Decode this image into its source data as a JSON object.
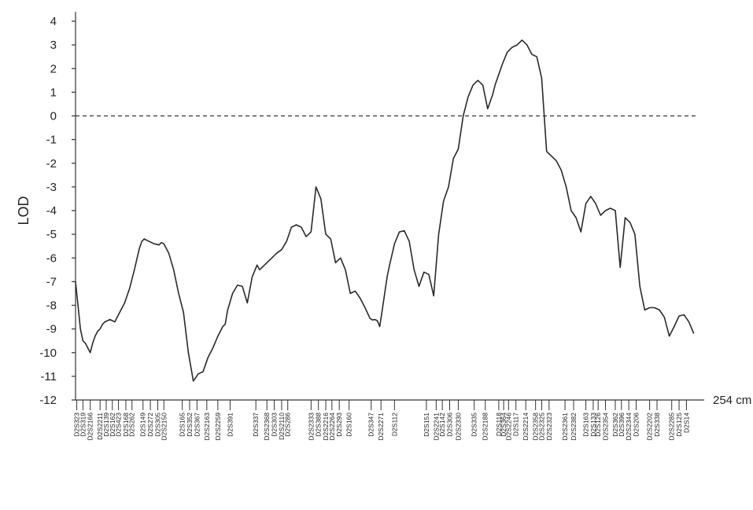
{
  "chart_data": {
    "type": "line",
    "ylabel": "LOD",
    "x_end_label": "254 cm",
    "x_unit": "cM",
    "xlim": [
      0,
      254
    ],
    "ylim": [
      -12,
      4
    ],
    "yticks": [
      "4",
      "3",
      "2",
      "1",
      "0",
      "-1",
      "-2",
      "-3",
      "-4",
      "-5",
      "-6",
      "-7",
      "-8",
      "-9",
      "-10",
      "-11",
      "-12"
    ],
    "threshold": {
      "y": 0,
      "style": "dashed"
    },
    "grid": false,
    "series": [
      {
        "x": [
          0,
          1,
          2,
          3,
          4,
          5,
          6,
          7,
          8,
          9,
          10,
          11,
          12,
          14,
          16,
          18,
          20,
          22,
          24,
          26,
          27,
          28,
          30,
          32,
          34,
          35,
          36,
          38,
          40,
          42,
          44,
          46,
          48,
          50,
          52,
          54,
          56,
          58,
          60,
          61,
          62,
          64,
          66,
          68,
          70,
          72,
          74,
          75,
          76,
          78,
          80,
          82,
          84,
          86,
          88,
          90,
          92,
          94,
          96,
          98,
          100,
          102,
          104,
          106,
          108,
          110,
          112,
          114,
          116,
          118,
          120,
          121,
          122,
          123,
          124,
          125,
          126,
          127,
          128,
          130,
          132,
          134,
          136,
          138,
          140,
          142,
          144,
          146,
          148,
          150,
          152,
          154,
          156,
          158,
          160,
          162,
          164,
          166,
          168,
          170,
          171,
          172,
          174,
          176,
          178,
          180,
          182,
          184,
          186,
          188,
          190,
          192,
          194,
          196,
          198,
          200,
          202,
          204,
          206,
          208,
          210,
          212,
          214,
          216,
          218,
          220,
          222,
          224,
          226,
          228,
          230,
          232,
          234,
          236,
          238,
          240,
          242,
          244,
          246,
          248,
          250,
          252
        ],
        "y": [
          -7.0,
          -8.0,
          -9.0,
          -9.5,
          -9.6,
          -9.8,
          -10.0,
          -9.6,
          -9.3,
          -9.1,
          -9.0,
          -8.8,
          -8.7,
          -8.6,
          -8.7,
          -8.3,
          -7.9,
          -7.3,
          -6.5,
          -5.6,
          -5.3,
          -5.2,
          -5.3,
          -5.4,
          -5.45,
          -5.35,
          -5.4,
          -5.8,
          -6.5,
          -7.5,
          -8.3,
          -10.0,
          -11.2,
          -10.9,
          -10.8,
          -10.2,
          -9.8,
          -9.3,
          -8.9,
          -8.8,
          -8.2,
          -7.5,
          -7.15,
          -7.2,
          -7.9,
          -6.8,
          -6.3,
          -6.5,
          -6.4,
          -6.2,
          -6.0,
          -5.8,
          -5.65,
          -5.3,
          -4.7,
          -4.6,
          -4.7,
          -5.1,
          -4.9,
          -3.0,
          -3.5,
          -5.0,
          -5.2,
          -6.2,
          -6.0,
          -6.5,
          -7.5,
          -7.4,
          -7.7,
          -8.1,
          -8.55,
          -8.62,
          -8.6,
          -8.65,
          -8.9,
          -8.2,
          -7.5,
          -6.8,
          -6.3,
          -5.4,
          -4.9,
          -4.85,
          -5.3,
          -6.5,
          -7.2,
          -6.6,
          -6.7,
          -7.6,
          -5.0,
          -3.6,
          -3.0,
          -1.8,
          -1.4,
          0.0,
          0.8,
          1.3,
          1.5,
          1.3,
          0.3,
          0.9,
          1.3,
          1.6,
          2.2,
          2.7,
          2.9,
          3.0,
          3.2,
          3.0,
          2.6,
          2.5,
          1.6,
          -1.5,
          -1.7,
          -1.9,
          -2.3,
          -3.0,
          -4.0,
          -4.3,
          -4.9,
          -3.7,
          -3.4,
          -3.7,
          -4.2,
          -4.0,
          -3.9,
          -4.0,
          -6.4,
          -4.3,
          -4.5,
          -5.0,
          -7.2,
          -8.2,
          -8.1,
          -8.1,
          -8.2,
          -8.5,
          -9.3,
          -8.9,
          -8.45,
          -8.4,
          -8.7,
          -9.2
        ]
      }
    ],
    "markers": [
      {
        "name": "D2S323",
        "pos": 0.5
      },
      {
        "name": "D2S319",
        "pos": 3
      },
      {
        "name": "D2S2166",
        "pos": 6
      },
      {
        "name": "D2S2211",
        "pos": 10
      },
      {
        "name": "D2S139",
        "pos": 12.5
      },
      {
        "name": "D2S162",
        "pos": 15
      },
      {
        "name": "D2S423",
        "pos": 17.5
      },
      {
        "name": "D2S168",
        "pos": 20.5
      },
      {
        "name": "D2S262",
        "pos": 23
      },
      {
        "name": "D2S149",
        "pos": 27.5
      },
      {
        "name": "D2S272",
        "pos": 30.5
      },
      {
        "name": "D2S305",
        "pos": 33.5
      },
      {
        "name": "D2S2150",
        "pos": 36
      },
      {
        "name": "D2S165",
        "pos": 43.5
      },
      {
        "name": "D2S352",
        "pos": 46.5
      },
      {
        "name": "D2S367",
        "pos": 49.5
      },
      {
        "name": "D2S2163",
        "pos": 53.5
      },
      {
        "name": "D2S2259",
        "pos": 58
      },
      {
        "name": "D2S391",
        "pos": 63
      },
      {
        "name": "D2S337",
        "pos": 73.5
      },
      {
        "name": "D2S2368",
        "pos": 78
      },
      {
        "name": "D2S303",
        "pos": 81
      },
      {
        "name": "D2S2110",
        "pos": 84
      },
      {
        "name": "D2S286",
        "pos": 86.5
      },
      {
        "name": "D2S2333",
        "pos": 96
      },
      {
        "name": "D2S388",
        "pos": 99
      },
      {
        "name": "D2S2216",
        "pos": 102
      },
      {
        "name": "D2S2264",
        "pos": 104.5
      },
      {
        "name": "D2S293",
        "pos": 107.5
      },
      {
        "name": "D2S160",
        "pos": 111.5
      },
      {
        "name": "D2S347",
        "pos": 120.5
      },
      {
        "name": "D2S2271",
        "pos": 124.5
      },
      {
        "name": "D2S112",
        "pos": 130
      },
      {
        "name": "D2S151",
        "pos": 143
      },
      {
        "name": "D2S2241",
        "pos": 147
      },
      {
        "name": "D2S142",
        "pos": 149.5
      },
      {
        "name": "D2S306",
        "pos": 152.5
      },
      {
        "name": "D2S2330",
        "pos": 156
      },
      {
        "name": "D2S335",
        "pos": 162.5
      },
      {
        "name": "D2S2188",
        "pos": 167
      },
      {
        "name": "D2S118",
        "pos": 172.5
      },
      {
        "name": "D2S364",
        "pos": 174.5
      },
      {
        "name": "D2S2246",
        "pos": 176.5
      },
      {
        "name": "D2S117",
        "pos": 179.5
      },
      {
        "name": "D2S2214",
        "pos": 183.5
      },
      {
        "name": "D2S2358",
        "pos": 187.5
      },
      {
        "name": "D2S2325",
        "pos": 190
      },
      {
        "name": "D2S2323",
        "pos": 193
      },
      {
        "name": "D2S2361",
        "pos": 199.5
      },
      {
        "name": "D2S2382",
        "pos": 203
      },
      {
        "name": "D2S163",
        "pos": 208
      },
      {
        "name": "D2S133",
        "pos": 211
      },
      {
        "name": "D2S126",
        "pos": 213
      },
      {
        "name": "D2S2354",
        "pos": 216
      },
      {
        "name": "D2S362",
        "pos": 220
      },
      {
        "name": "D2S396",
        "pos": 222.5
      },
      {
        "name": "D2S2344",
        "pos": 225.5
      },
      {
        "name": "D2S206",
        "pos": 228.5
      },
      {
        "name": "D2S2202",
        "pos": 234
      },
      {
        "name": "D2S338",
        "pos": 237
      },
      {
        "name": "D2S2285",
        "pos": 243
      },
      {
        "name": "D2S125",
        "pos": 246
      },
      {
        "name": "D2S14",
        "pos": 249
      }
    ]
  }
}
